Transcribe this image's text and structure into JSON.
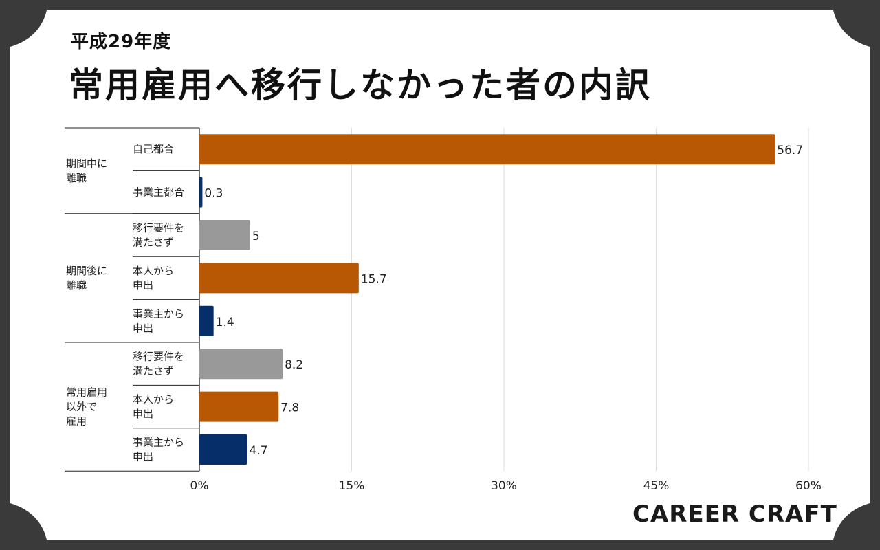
{
  "header": {
    "subtitle": "平成29年度",
    "title": "常用雇用へ移行しなかった者の内訳"
  },
  "brand": {
    "logo_text": "CAREER CRAFT"
  },
  "colors": {
    "background": "#3a3a3a",
    "card": "#ffffff",
    "orange": "#b95804",
    "navy": "#062f6a",
    "gray": "#999999",
    "grid": "#dddddd"
  },
  "chart_data": {
    "type": "bar",
    "orientation": "horizontal",
    "xlim": [
      0,
      60
    ],
    "x_ticks": [
      "0%",
      "15%",
      "30%",
      "45%",
      "60%"
    ],
    "x_tick_values": [
      0,
      15,
      30,
      45,
      60
    ],
    "grid": true,
    "groups": [
      {
        "label": "期間中に\n離職",
        "span": [
          0,
          1
        ]
      },
      {
        "label": "期間後に\n離職",
        "span": [
          2,
          4
        ]
      },
      {
        "label": "常用雇用\n以外で\n雇用",
        "span": [
          5,
          7
        ]
      }
    ],
    "bars": [
      {
        "category": "自己都合",
        "value": 56.7,
        "label": "56.7",
        "color": "orange"
      },
      {
        "category": "事業主都合",
        "value": 0.3,
        "label": "0.3",
        "color": "navy"
      },
      {
        "category": "移行要件を\n満たさず",
        "value": 5,
        "label": "5",
        "color": "gray"
      },
      {
        "category": "本人から\n申出",
        "value": 15.7,
        "label": "15.7",
        "color": "orange"
      },
      {
        "category": "事業主から\n申出",
        "value": 1.4,
        "label": "1.4",
        "color": "navy"
      },
      {
        "category": "移行要件を\n満たさず",
        "value": 8.2,
        "label": "8.2",
        "color": "gray"
      },
      {
        "category": "本人から\n申出",
        "value": 7.8,
        "label": "7.8",
        "color": "orange"
      },
      {
        "category": "事業主から\n申出",
        "value": 4.7,
        "label": "4.7",
        "color": "navy"
      }
    ]
  }
}
